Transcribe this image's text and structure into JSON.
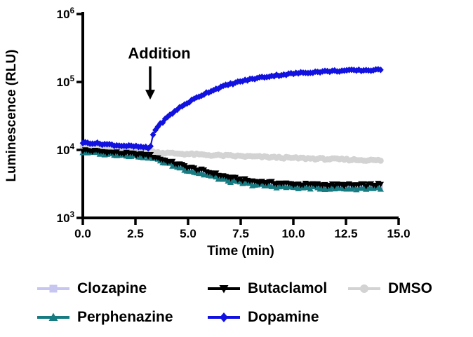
{
  "figure": {
    "background": "#ffffff",
    "text_color": "#000000"
  },
  "chart_data": {
    "type": "line",
    "title": "",
    "xlabel": "Time (min)",
    "ylabel": "Luminescence (RLU)",
    "xlim": [
      0,
      15
    ],
    "x_ticks": [
      0,
      2.5,
      5,
      7.5,
      10,
      12.5,
      15
    ],
    "x_tick_labels": [
      "0.0",
      "2.5",
      "5.0",
      "7.5",
      "10.0",
      "12.5",
      "15.0"
    ],
    "y_scale": "log",
    "ylim": [
      1000,
      1000000
    ],
    "y_tick_exponents": [
      3,
      4,
      5,
      6
    ],
    "y_tick_base": "10",
    "grid": false,
    "legend_position": "bottom",
    "marker_step_min": 0.115,
    "t_end": 14.2,
    "annotation": {
      "text": "Addition",
      "x_min": 3.2,
      "arrow_tail_rlu": 170000,
      "arrow_tip_rlu": 55000
    },
    "series": [
      {
        "name": "Clozapine",
        "color": "#c6c6f0",
        "marker": "square",
        "noise_dec": 0.02,
        "anchors_t": [
          0,
          1,
          2,
          3,
          3.2,
          4,
          5,
          6,
          7,
          8,
          9,
          10,
          11,
          12,
          13,
          14.2
        ],
        "anchors_rlu": [
          9600,
          9100,
          8600,
          8100,
          8000,
          6600,
          5300,
          4400,
          3700,
          3300,
          3100,
          3000,
          2950,
          2900,
          2900,
          2950
        ]
      },
      {
        "name": "Butaclamol",
        "color": "#000000",
        "marker": "triangle-down",
        "noise_dec": 0.02,
        "anchors_t": [
          0,
          1,
          2,
          3,
          3.2,
          4,
          5,
          6,
          7,
          8,
          9,
          10,
          11,
          12,
          13,
          14.2
        ],
        "anchors_rlu": [
          9900,
          9400,
          8900,
          8400,
          8300,
          6900,
          5600,
          4700,
          3900,
          3500,
          3300,
          3150,
          3100,
          3050,
          3050,
          3100
        ]
      },
      {
        "name": "DMSO",
        "color": "#d3d3d3",
        "marker": "circle",
        "noise_dec": 0.013,
        "anchors_t": [
          0,
          1,
          2,
          3,
          4,
          5,
          6,
          7,
          8,
          9,
          10,
          11,
          12,
          13,
          14.2
        ],
        "anchors_rlu": [
          11500,
          10800,
          10100,
          9500,
          9000,
          8700,
          8400,
          8200,
          8000,
          7800,
          7600,
          7450,
          7300,
          7150,
          7000
        ]
      },
      {
        "name": "Perphenazine",
        "color": "#177b82",
        "marker": "triangle-up",
        "noise_dec": 0.02,
        "anchors_t": [
          0,
          1,
          2,
          3,
          3.2,
          4,
          5,
          6,
          7,
          8,
          9,
          10,
          11,
          12,
          13,
          14.2
        ],
        "anchors_rlu": [
          9300,
          8800,
          8400,
          7900,
          7800,
          6300,
          5000,
          4150,
          3450,
          3100,
          2900,
          2800,
          2750,
          2700,
          2700,
          2750
        ]
      },
      {
        "name": "Dopamine",
        "color": "#1212e0",
        "marker": "diamond",
        "noise_dec": 0.012,
        "anchors_t": [
          0,
          0.5,
          1,
          1.5,
          2,
          2.5,
          3,
          3.2,
          3.3,
          3.5,
          4,
          4.5,
          5,
          5.5,
          6,
          6.5,
          7,
          7.5,
          8,
          8.5,
          9,
          9.5,
          10,
          10.5,
          11,
          11.5,
          12,
          12.5,
          13,
          13.5,
          14.2
        ],
        "anchors_rlu": [
          12800,
          12600,
          12200,
          11800,
          11500,
          11200,
          10800,
          10400,
          16000,
          21000,
          30000,
          40000,
          50000,
          61000,
          72000,
          83000,
          93000,
          102000,
          110000,
          117000,
          123000,
          128000,
          133000,
          137000,
          140000,
          143000,
          145000,
          147000,
          148000,
          149000,
          150000
        ]
      }
    ],
    "plot_order": [
      0,
      2,
      3,
      1,
      4
    ],
    "legend_order": [
      0,
      1,
      2,
      3,
      4
    ]
  }
}
